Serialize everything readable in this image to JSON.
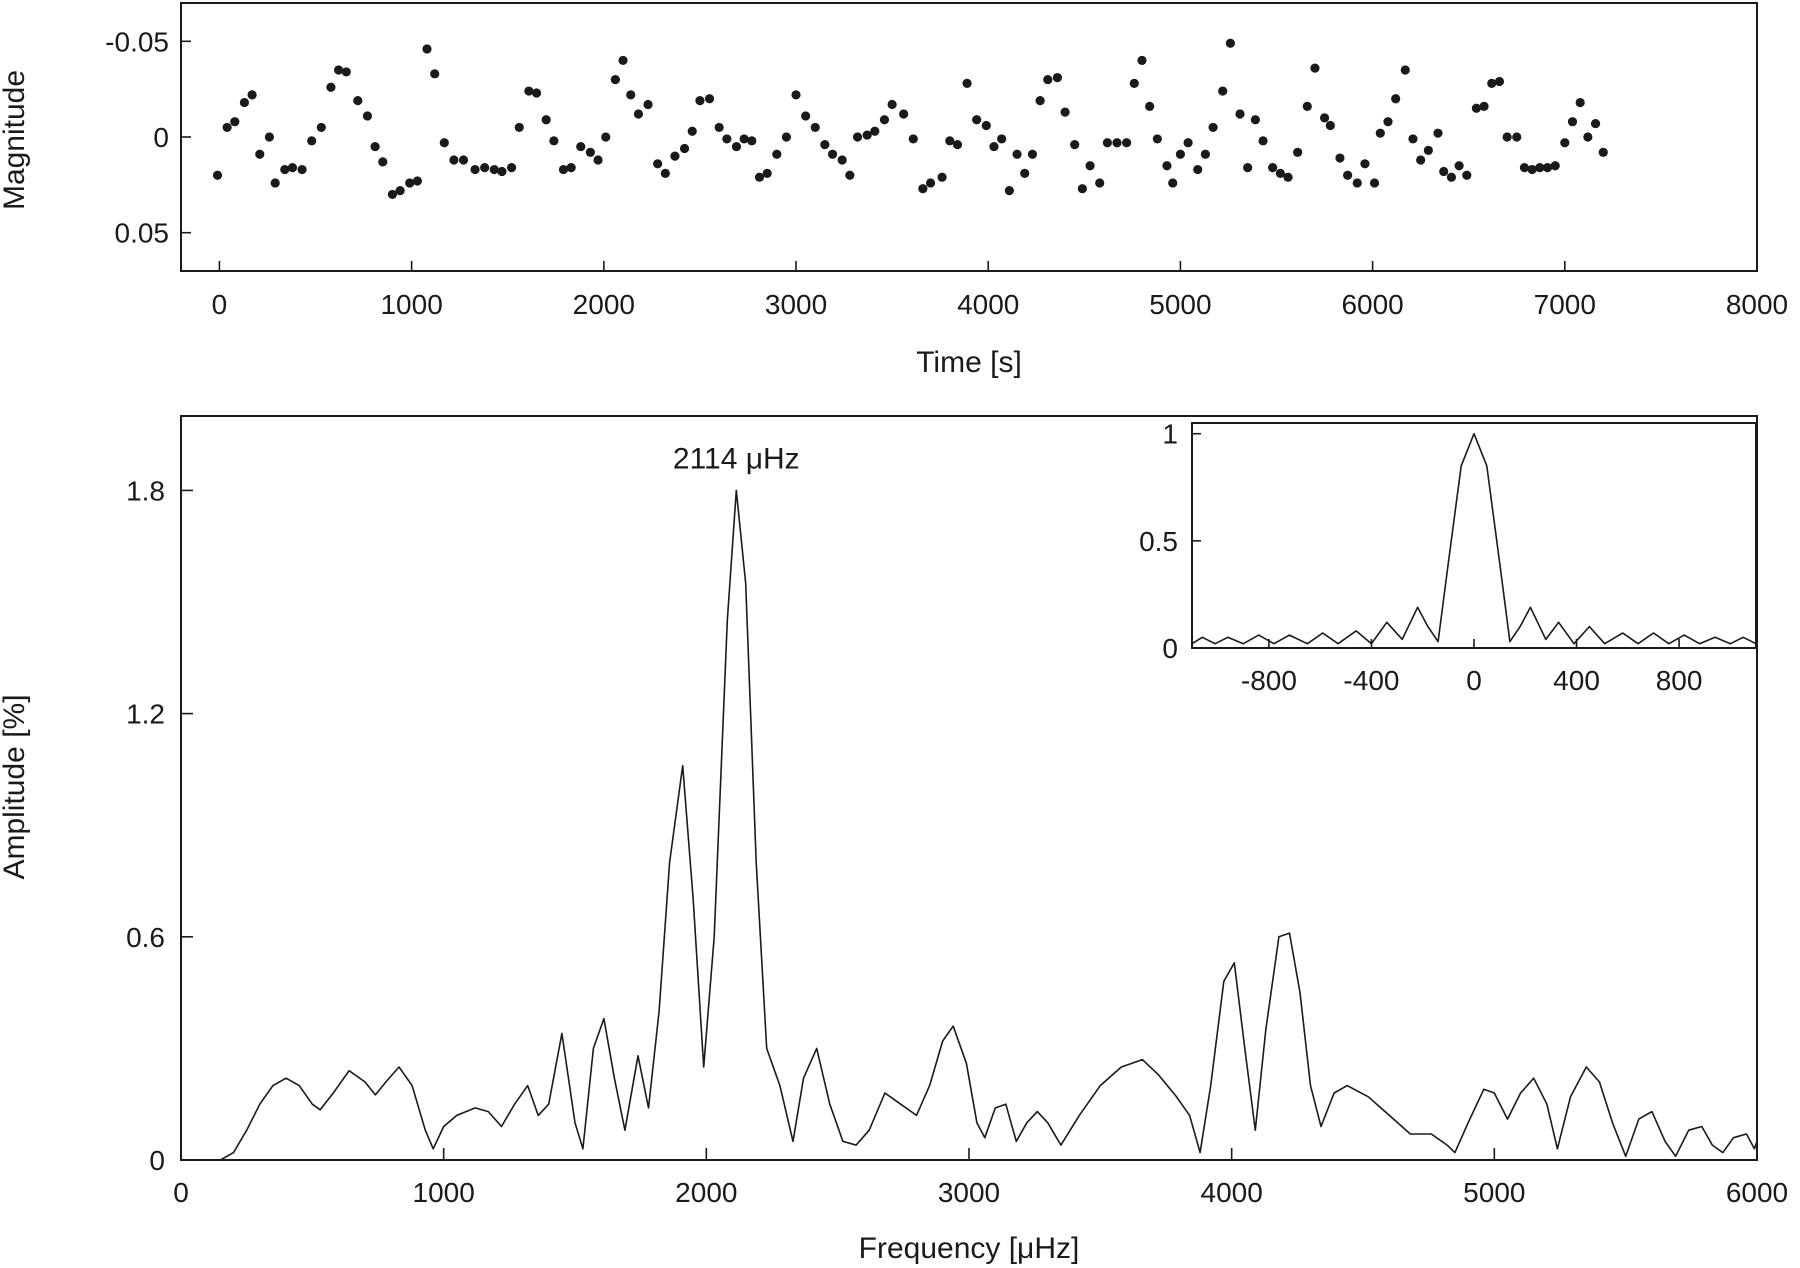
{
  "chart_data": [
    {
      "id": "lightcurve",
      "type": "scatter",
      "xlabel": "Time [s]",
      "ylabel": "Magnitude",
      "xlim": [
        -200,
        8000
      ],
      "ylim": [
        0.07,
        -0.07
      ],
      "y_inverted": true,
      "xticks": [
        0,
        1000,
        2000,
        3000,
        4000,
        5000,
        6000,
        7000,
        8000
      ],
      "xtick_labels": [
        "0",
        "1000",
        "2000",
        "3000",
        "4000",
        "5000",
        "6000",
        "7000",
        "8000"
      ],
      "yticks": [
        -0.05,
        0,
        0.05
      ],
      "ytick_labels": [
        "-0.05",
        "0",
        "0.05"
      ],
      "grid": false,
      "points": [
        [
          -10,
          0.02
        ],
        [
          40,
          -0.005
        ],
        [
          80,
          -0.008
        ],
        [
          130,
          -0.018
        ],
        [
          170,
          -0.022
        ],
        [
          210,
          0.009
        ],
        [
          260,
          0.0
        ],
        [
          290,
          0.024
        ],
        [
          340,
          0.017
        ],
        [
          380,
          0.016
        ],
        [
          430,
          0.017
        ],
        [
          480,
          0.002
        ],
        [
          530,
          -0.005
        ],
        [
          580,
          -0.026
        ],
        [
          620,
          -0.035
        ],
        [
          660,
          -0.034
        ],
        [
          720,
          -0.019
        ],
        [
          770,
          -0.011
        ],
        [
          810,
          0.005
        ],
        [
          850,
          0.013
        ],
        [
          900,
          0.03
        ],
        [
          940,
          0.028
        ],
        [
          990,
          0.024
        ],
        [
          1030,
          0.023
        ],
        [
          1080,
          -0.046
        ],
        [
          1120,
          -0.033
        ],
        [
          1170,
          0.003
        ],
        [
          1220,
          0.012
        ],
        [
          1270,
          0.012
        ],
        [
          1330,
          0.017
        ],
        [
          1380,
          0.016
        ],
        [
          1430,
          0.017
        ],
        [
          1470,
          0.018
        ],
        [
          1520,
          0.016
        ],
        [
          1560,
          -0.005
        ],
        [
          1610,
          -0.024
        ],
        [
          1650,
          -0.023
        ],
        [
          1700,
          -0.009
        ],
        [
          1740,
          0.002
        ],
        [
          1790,
          0.017
        ],
        [
          1830,
          0.016
        ],
        [
          1880,
          0.005
        ],
        [
          1930,
          0.008
        ],
        [
          1970,
          0.012
        ],
        [
          2010,
          0.0
        ],
        [
          2060,
          -0.03
        ],
        [
          2100,
          -0.04
        ],
        [
          2140,
          -0.022
        ],
        [
          2180,
          -0.012
        ],
        [
          2230,
          -0.017
        ],
        [
          2280,
          0.014
        ],
        [
          2320,
          0.019
        ],
        [
          2370,
          0.01
        ],
        [
          2420,
          0.006
        ],
        [
          2460,
          -0.003
        ],
        [
          2500,
          -0.019
        ],
        [
          2550,
          -0.02
        ],
        [
          2600,
          -0.005
        ],
        [
          2640,
          0.001
        ],
        [
          2690,
          0.005
        ],
        [
          2730,
          0.001
        ],
        [
          2770,
          0.002
        ],
        [
          2810,
          0.021
        ],
        [
          2850,
          0.019
        ],
        [
          2900,
          0.009
        ],
        [
          2950,
          0.0
        ],
        [
          3000,
          -0.022
        ],
        [
          3050,
          -0.011
        ],
        [
          3100,
          -0.005
        ],
        [
          3150,
          0.004
        ],
        [
          3190,
          0.009
        ],
        [
          3240,
          0.012
        ],
        [
          3280,
          0.02
        ],
        [
          3320,
          0.0
        ],
        [
          3370,
          -0.001
        ],
        [
          3410,
          -0.003
        ],
        [
          3460,
          -0.009
        ],
        [
          3500,
          -0.017
        ],
        [
          3560,
          -0.012
        ],
        [
          3610,
          0.001
        ],
        [
          3660,
          0.027
        ],
        [
          3700,
          0.024
        ],
        [
          3760,
          0.021
        ],
        [
          3800,
          0.002
        ],
        [
          3840,
          0.004
        ],
        [
          3890,
          -0.028
        ],
        [
          3940,
          -0.009
        ],
        [
          3990,
          -0.006
        ],
        [
          4030,
          0.005
        ],
        [
          4070,
          0.001
        ],
        [
          4110,
          0.028
        ],
        [
          4150,
          0.009
        ],
        [
          4190,
          0.019
        ],
        [
          4230,
          0.009
        ],
        [
          4270,
          -0.019
        ],
        [
          4310,
          -0.03
        ],
        [
          4360,
          -0.031
        ],
        [
          4400,
          -0.013
        ],
        [
          4450,
          0.004
        ],
        [
          4490,
          0.027
        ],
        [
          4530,
          0.015
        ],
        [
          4580,
          0.024
        ],
        [
          4620,
          0.003
        ],
        [
          4670,
          0.003
        ],
        [
          4720,
          0.003
        ],
        [
          4760,
          -0.028
        ],
        [
          4800,
          -0.04
        ],
        [
          4840,
          -0.016
        ],
        [
          4880,
          0.001
        ],
        [
          4930,
          0.015
        ],
        [
          4960,
          0.024
        ],
        [
          5000,
          0.009
        ],
        [
          5040,
          0.003
        ],
        [
          5090,
          0.017
        ],
        [
          5130,
          0.009
        ],
        [
          5170,
          -0.005
        ],
        [
          5220,
          -0.024
        ],
        [
          5260,
          -0.049
        ],
        [
          5310,
          -0.012
        ],
        [
          5350,
          0.016
        ],
        [
          5390,
          -0.009
        ],
        [
          5430,
          0.002
        ],
        [
          5480,
          0.016
        ],
        [
          5520,
          0.019
        ],
        [
          5560,
          0.021
        ],
        [
          5610,
          0.008
        ],
        [
          5660,
          -0.016
        ],
        [
          5700,
          -0.036
        ],
        [
          5750,
          -0.01
        ],
        [
          5780,
          -0.006
        ],
        [
          5830,
          0.011
        ],
        [
          5870,
          0.02
        ],
        [
          5920,
          0.024
        ],
        [
          5960,
          0.014
        ],
        [
          6010,
          0.024
        ],
        [
          6040,
          -0.002
        ],
        [
          6080,
          -0.008
        ],
        [
          6120,
          -0.02
        ],
        [
          6170,
          -0.035
        ],
        [
          6210,
          0.001
        ],
        [
          6250,
          0.012
        ],
        [
          6290,
          0.007
        ],
        [
          6340,
          -0.002
        ],
        [
          6370,
          0.018
        ],
        [
          6410,
          0.021
        ],
        [
          6450,
          0.015
        ],
        [
          6490,
          0.02
        ],
        [
          6540,
          -0.015
        ],
        [
          6580,
          -0.016
        ],
        [
          6620,
          -0.028
        ],
        [
          6660,
          -0.029
        ],
        [
          6700,
          0.0
        ],
        [
          6750,
          0.0
        ],
        [
          6790,
          0.016
        ],
        [
          6830,
          0.017
        ],
        [
          6870,
          0.016
        ],
        [
          6910,
          0.016
        ],
        [
          6950,
          0.015
        ],
        [
          7000,
          0.003
        ],
        [
          7040,
          -0.008
        ],
        [
          7080,
          -0.018
        ],
        [
          7120,
          0.0
        ],
        [
          7160,
          -0.007
        ],
        [
          7200,
          0.008
        ]
      ]
    },
    {
      "id": "amplitude-spectrum",
      "type": "line",
      "xlabel": "Frequency [μHz]",
      "ylabel": "Amplitude [%]",
      "xlim": [
        0,
        6000
      ],
      "ylim": [
        0,
        2.0
      ],
      "xticks": [
        0,
        1000,
        2000,
        3000,
        4000,
        5000,
        6000
      ],
      "xtick_labels": [
        "0",
        "1000",
        "2000",
        "3000",
        "4000",
        "5000",
        "6000"
      ],
      "yticks": [
        0,
        0.6,
        1.2,
        1.8
      ],
      "ytick_labels": [
        "0",
        "0.6",
        "1.2",
        "1.8"
      ],
      "grid": false,
      "annotation": {
        "text": "2114 μHz",
        "x": 2114,
        "y": 1.8
      },
      "points": [
        [
          0,
          0
        ],
        [
          100,
          0
        ],
        [
          150,
          0
        ],
        [
          200,
          0.02
        ],
        [
          250,
          0.08
        ],
        [
          300,
          0.15
        ],
        [
          350,
          0.2
        ],
        [
          400,
          0.22
        ],
        [
          450,
          0.2
        ],
        [
          500,
          0.15
        ],
        [
          530,
          0.135
        ],
        [
          580,
          0.18
        ],
        [
          640,
          0.24
        ],
        [
          700,
          0.21
        ],
        [
          740,
          0.175
        ],
        [
          780,
          0.21
        ],
        [
          830,
          0.25
        ],
        [
          880,
          0.2
        ],
        [
          930,
          0.08
        ],
        [
          960,
          0.03
        ],
        [
          1000,
          0.09
        ],
        [
          1050,
          0.12
        ],
        [
          1120,
          0.14
        ],
        [
          1170,
          0.13
        ],
        [
          1220,
          0.09
        ],
        [
          1270,
          0.15
        ],
        [
          1320,
          0.2
        ],
        [
          1360,
          0.12
        ],
        [
          1400,
          0.15
        ],
        [
          1450,
          0.34
        ],
        [
          1500,
          0.1
        ],
        [
          1530,
          0.03
        ],
        [
          1570,
          0.3
        ],
        [
          1610,
          0.38
        ],
        [
          1650,
          0.22
        ],
        [
          1690,
          0.08
        ],
        [
          1740,
          0.28
        ],
        [
          1780,
          0.14
        ],
        [
          1820,
          0.4
        ],
        [
          1860,
          0.8
        ],
        [
          1910,
          1.06
        ],
        [
          1950,
          0.7
        ],
        [
          1990,
          0.25
        ],
        [
          2030,
          0.6
        ],
        [
          2080,
          1.45
        ],
        [
          2114,
          1.8
        ],
        [
          2150,
          1.55
        ],
        [
          2190,
          0.8
        ],
        [
          2230,
          0.3
        ],
        [
          2280,
          0.2
        ],
        [
          2330,
          0.05
        ],
        [
          2370,
          0.22
        ],
        [
          2420,
          0.3
        ],
        [
          2470,
          0.15
        ],
        [
          2520,
          0.05
        ],
        [
          2570,
          0.04
        ],
        [
          2620,
          0.08
        ],
        [
          2680,
          0.18
        ],
        [
          2740,
          0.15
        ],
        [
          2800,
          0.12
        ],
        [
          2850,
          0.2
        ],
        [
          2900,
          0.32
        ],
        [
          2940,
          0.36
        ],
        [
          2990,
          0.26
        ],
        [
          3030,
          0.1
        ],
        [
          3060,
          0.06
        ],
        [
          3100,
          0.14
        ],
        [
          3140,
          0.15
        ],
        [
          3180,
          0.05
        ],
        [
          3220,
          0.1
        ],
        [
          3260,
          0.13
        ],
        [
          3300,
          0.1
        ],
        [
          3350,
          0.04
        ],
        [
          3420,
          0.12
        ],
        [
          3500,
          0.2
        ],
        [
          3580,
          0.25
        ],
        [
          3660,
          0.27
        ],
        [
          3720,
          0.23
        ],
        [
          3790,
          0.17
        ],
        [
          3840,
          0.12
        ],
        [
          3880,
          0.02
        ],
        [
          3920,
          0.2
        ],
        [
          3970,
          0.48
        ],
        [
          4010,
          0.53
        ],
        [
          4050,
          0.3
        ],
        [
          4090,
          0.08
        ],
        [
          4130,
          0.35
        ],
        [
          4180,
          0.6
        ],
        [
          4220,
          0.61
        ],
        [
          4260,
          0.45
        ],
        [
          4300,
          0.2
        ],
        [
          4340,
          0.09
        ],
        [
          4390,
          0.18
        ],
        [
          4440,
          0.2
        ],
        [
          4520,
          0.17
        ],
        [
          4600,
          0.12
        ],
        [
          4680,
          0.07
        ],
        [
          4760,
          0.07
        ],
        [
          4820,
          0.04
        ],
        [
          4850,
          0.02
        ],
        [
          4900,
          0.1
        ],
        [
          4960,
          0.19
        ],
        [
          5000,
          0.18
        ],
        [
          5050,
          0.11
        ],
        [
          5100,
          0.18
        ],
        [
          5150,
          0.22
        ],
        [
          5200,
          0.15
        ],
        [
          5240,
          0.03
        ],
        [
          5290,
          0.17
        ],
        [
          5350,
          0.25
        ],
        [
          5400,
          0.21
        ],
        [
          5450,
          0.1
        ],
        [
          5500,
          0.01
        ],
        [
          5550,
          0.11
        ],
        [
          5600,
          0.13
        ],
        [
          5650,
          0.05
        ],
        [
          5690,
          0.01
        ],
        [
          5740,
          0.08
        ],
        [
          5790,
          0.09
        ],
        [
          5830,
          0.04
        ],
        [
          5870,
          0.02
        ],
        [
          5910,
          0.06
        ],
        [
          5960,
          0.07
        ],
        [
          5990,
          0.03
        ],
        [
          6000,
          0.05
        ]
      ]
    },
    {
      "id": "spectral-window",
      "type": "line",
      "xlim": [
        -1100,
        1100
      ],
      "ylim": [
        0,
        1.05
      ],
      "xticks": [
        -800,
        -400,
        0,
        400,
        800
      ],
      "xtick_labels": [
        "-800",
        "-400",
        "0",
        "400",
        "800"
      ],
      "yticks": [
        0,
        0.5,
        1
      ],
      "ytick_labels": [
        "0",
        "0.5",
        "1"
      ],
      "grid": false,
      "points": [
        [
          -1100,
          0.02
        ],
        [
          -1060,
          0.05
        ],
        [
          -1010,
          0.02
        ],
        [
          -960,
          0.05
        ],
        [
          -900,
          0.02
        ],
        [
          -840,
          0.06
        ],
        [
          -780,
          0.02
        ],
        [
          -720,
          0.06
        ],
        [
          -650,
          0.02
        ],
        [
          -590,
          0.07
        ],
        [
          -530,
          0.02
        ],
        [
          -460,
          0.08
        ],
        [
          -400,
          0.02
        ],
        [
          -340,
          0.12
        ],
        [
          -280,
          0.04
        ],
        [
          -220,
          0.19
        ],
        [
          -180,
          0.1
        ],
        [
          -140,
          0.03
        ],
        [
          -100,
          0.4
        ],
        [
          -50,
          0.85
        ],
        [
          0,
          1.0
        ],
        [
          50,
          0.85
        ],
        [
          100,
          0.4
        ],
        [
          140,
          0.03
        ],
        [
          180,
          0.1
        ],
        [
          220,
          0.19
        ],
        [
          280,
          0.04
        ],
        [
          330,
          0.12
        ],
        [
          390,
          0.02
        ],
        [
          450,
          0.1
        ],
        [
          510,
          0.02
        ],
        [
          580,
          0.07
        ],
        [
          640,
          0.02
        ],
        [
          700,
          0.07
        ],
        [
          760,
          0.02
        ],
        [
          820,
          0.06
        ],
        [
          880,
          0.02
        ],
        [
          940,
          0.05
        ],
        [
          1000,
          0.02
        ],
        [
          1050,
          0.05
        ],
        [
          1100,
          0.02
        ]
      ]
    }
  ]
}
